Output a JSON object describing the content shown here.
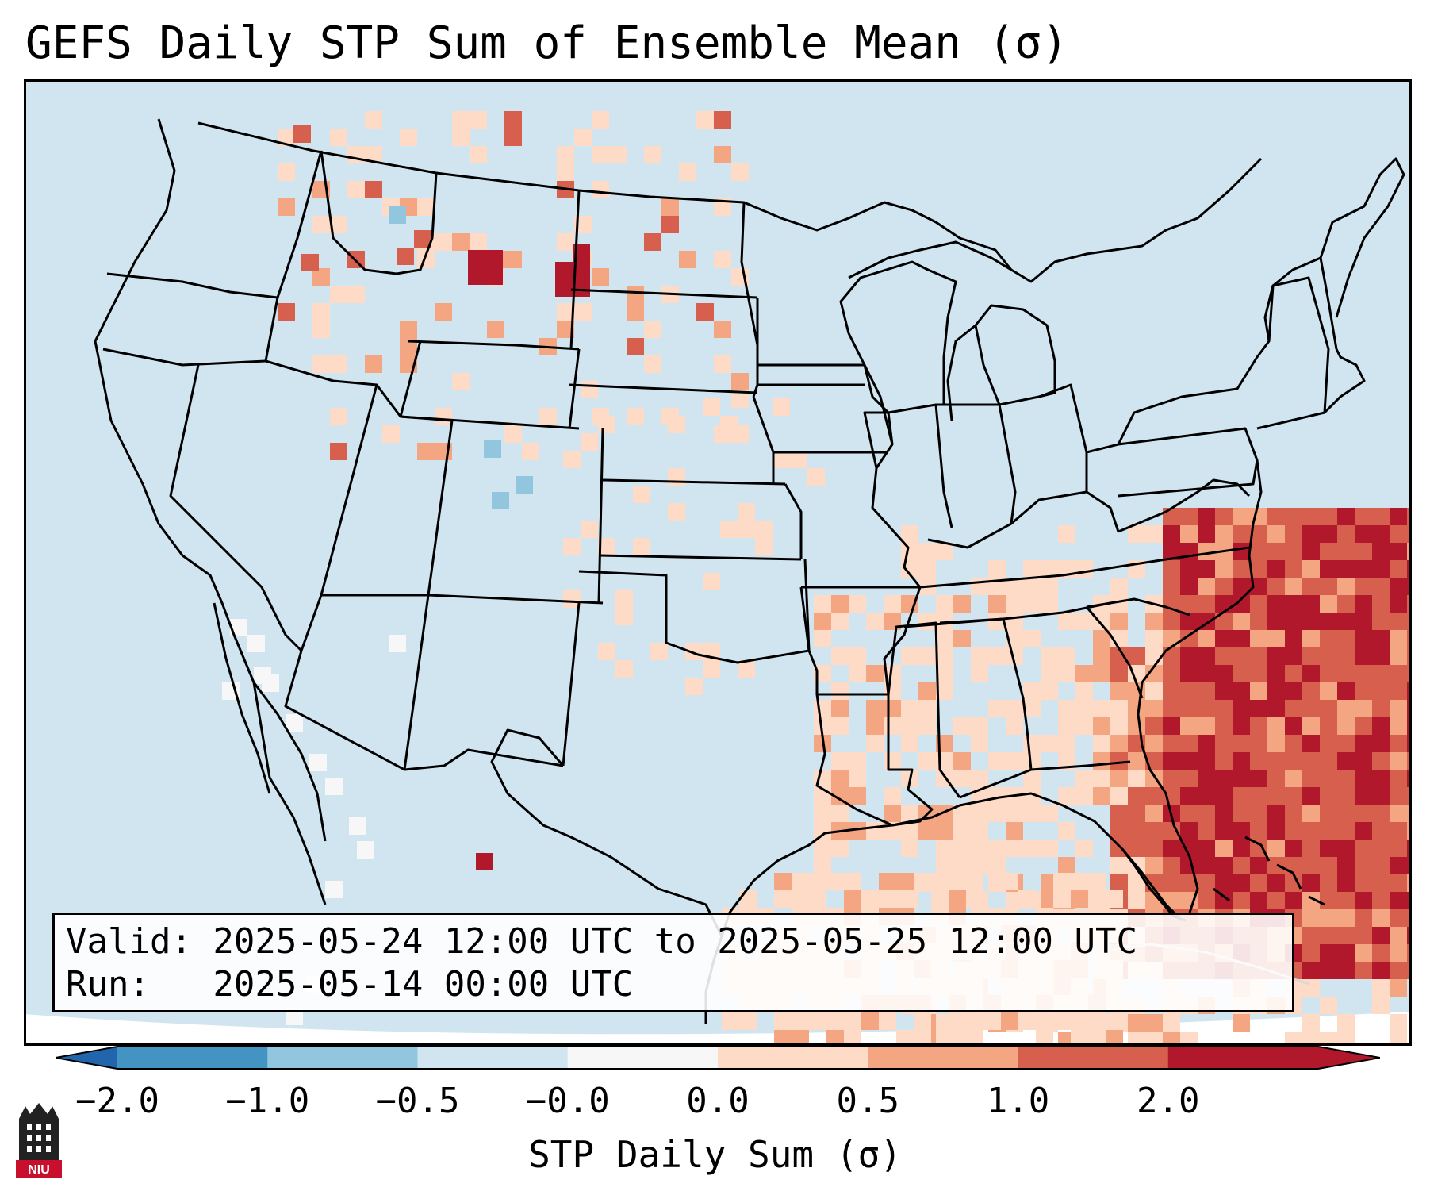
{
  "title": "GEFS Daily STP Sum of Ensemble Mean (σ)",
  "valid_label": "Valid: 2025-05-24 12:00 UTC to 2025-05-25 12:00 UTC",
  "run_label": "Run:   2025-05-14 00:00 UTC",
  "colorbar": {
    "label": "STP Daily Sum (σ)",
    "ticks": [
      "−2.0",
      "−1.0",
      "−0.5",
      "−0.0",
      "0.0",
      "0.5",
      "1.0",
      "2.0"
    ],
    "colors": [
      "#4393c3",
      "#92c5de",
      "#d1e5f0",
      "#f7f7f7",
      "#fddbc7",
      "#f4a582",
      "#d6604d",
      "#b2182b"
    ],
    "under_color": "#2166ac",
    "over_color": "#b2182b"
  },
  "colors": {
    "background": "#d1e5f0",
    "neutral": "#f7f7f7",
    "light_pos": "#fddbc7",
    "mid_pos": "#f4a582",
    "high_pos": "#d6604d",
    "max_pos": "#b2182b",
    "light_neg": "#92c5de"
  },
  "logo": {
    "text": "NIU",
    "color": "#c8102e"
  }
}
